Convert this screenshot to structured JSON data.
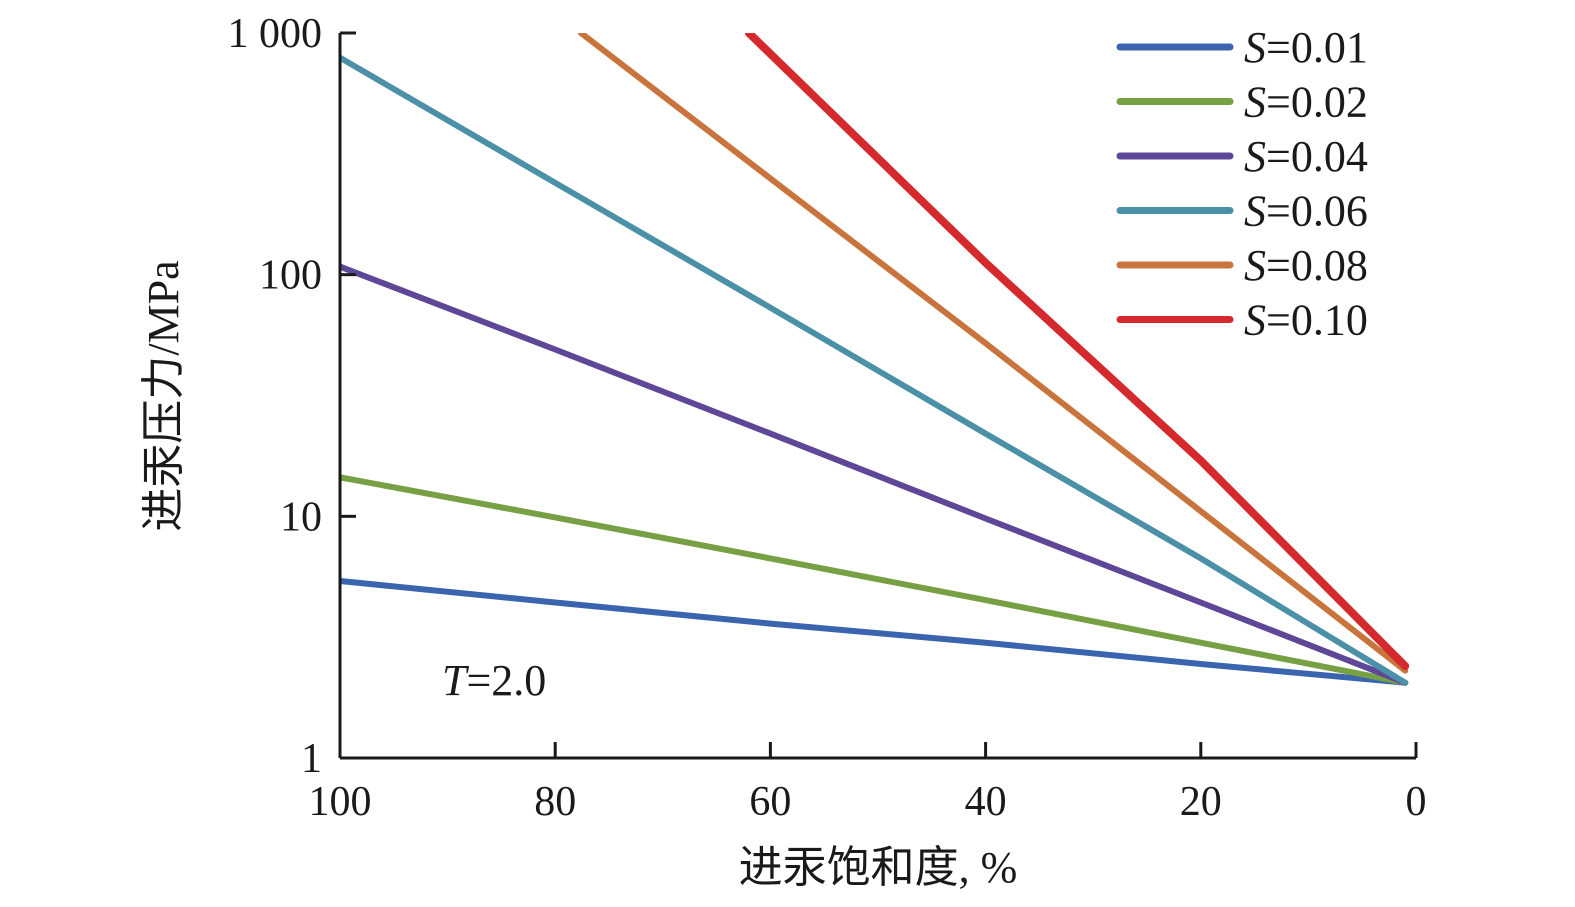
{
  "chart_data": {
    "type": "line",
    "xlabel": "进汞饱和度, %",
    "ylabel": "进汞压力/MPa",
    "x_reversed": true,
    "xlim": [
      0,
      100
    ],
    "ylim": [
      1,
      1000
    ],
    "y_scale": "log",
    "x_ticks": [
      100,
      80,
      60,
      40,
      20,
      0
    ],
    "x_tick_labels": [
      "100",
      "80",
      "60",
      "40",
      "20",
      "0"
    ],
    "y_ticks": [
      1,
      10,
      100,
      1000
    ],
    "y_tick_labels": [
      "1",
      "10",
      "100",
      "1 000"
    ],
    "grid": false,
    "legend_position": "top-right",
    "annotation": {
      "var": "T",
      "text": "=2.0"
    },
    "series": [
      {
        "name": "S=0.01",
        "var": "S",
        "value_text": "=0.01",
        "color": "#3a64ad",
        "points": [
          [
            100,
            5.4
          ],
          [
            80,
            4.4
          ],
          [
            60,
            3.6
          ],
          [
            40,
            3.0
          ],
          [
            20,
            2.45
          ],
          [
            1,
            2.05
          ]
        ]
      },
      {
        "name": "S=0.02",
        "var": "S",
        "value_text": "=0.02",
        "color": "#77a045",
        "points": [
          [
            100,
            14.5
          ],
          [
            80,
            9.9
          ],
          [
            60,
            6.7
          ],
          [
            40,
            4.5
          ],
          [
            20,
            3.0
          ],
          [
            1,
            2.05
          ]
        ]
      },
      {
        "name": "S=0.04",
        "var": "S",
        "value_text": "=0.04",
        "color": "#5e4796",
        "points": [
          [
            100,
            108
          ],
          [
            80,
            49
          ],
          [
            60,
            22
          ],
          [
            40,
            9.8
          ],
          [
            20,
            4.4
          ],
          [
            1,
            2.05
          ]
        ]
      },
      {
        "name": "S=0.06",
        "var": "S",
        "value_text": "=0.06",
        "color": "#4c90a8",
        "points": [
          [
            100,
            790
          ],
          [
            80,
            240
          ],
          [
            60,
            73
          ],
          [
            40,
            22
          ],
          [
            20,
            6.7
          ],
          [
            1,
            2.05
          ]
        ]
      },
      {
        "name": "S=0.08",
        "var": "S",
        "value_text": "=0.08",
        "color": "#c8743c",
        "points": [
          [
            77.6,
            1000
          ],
          [
            60,
            250
          ],
          [
            40,
            52
          ],
          [
            20,
            10.5
          ],
          [
            1,
            2.3
          ]
        ]
      },
      {
        "name": "S=0.10",
        "var": "S",
        "value_text": "=0.10",
        "color": "#d42a2e",
        "points": [
          [
            62,
            1000
          ],
          [
            40,
            112
          ],
          [
            20,
            17
          ],
          [
            1,
            2.4
          ]
        ]
      }
    ]
  }
}
